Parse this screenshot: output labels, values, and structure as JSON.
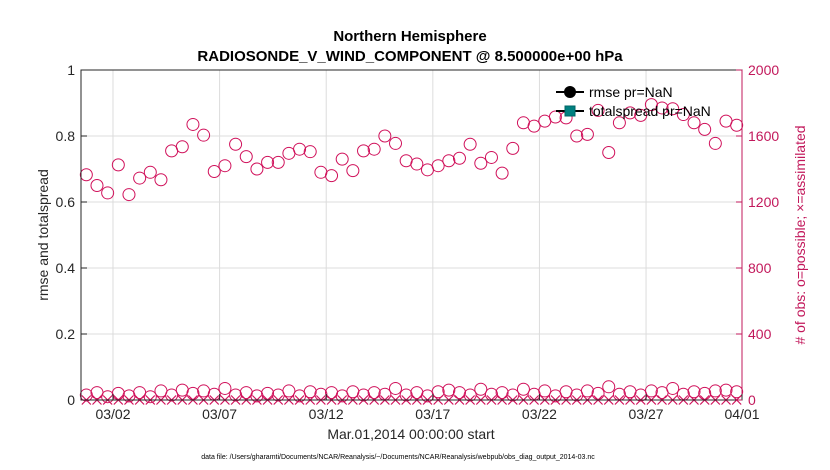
{
  "chart_data": {
    "type": "scatter",
    "title_line1": "Northern Hemisphere",
    "title_line2": "RADIOSONDE_V_WIND_COMPONENT @ 8.500000e+00 hPa",
    "xlabel": "Mar.01,2014 00:00:00 start",
    "ylabel_left": "rmse and totalspread",
    "ylabel_right": "# of obs: o=possible; ×=assimilated",
    "footnote": "data file: /Users/gharamti/Documents/NCAR/Reanalysis/~/Documents/NCAR/Reanalysis/webpub/obs_diag_output_2014-03.nc",
    "xlim": [
      0.5,
      31.5
    ],
    "ylim_left": [
      0,
      1
    ],
    "ylim_right": [
      0,
      2000
    ],
    "x_ticks": [
      {
        "value": 2,
        "label": "03/02"
      },
      {
        "value": 7,
        "label": "03/07"
      },
      {
        "value": 12,
        "label": "03/12"
      },
      {
        "value": 17,
        "label": "03/17"
      },
      {
        "value": 22,
        "label": "03/22"
      },
      {
        "value": 27,
        "label": "03/27"
      },
      {
        "value": 31.5,
        "label": "04/01"
      }
    ],
    "y_ticks_left": [
      {
        "value": 0,
        "label": "0"
      },
      {
        "value": 0.2,
        "label": "0.2"
      },
      {
        "value": 0.4,
        "label": "0.4"
      },
      {
        "value": 0.6,
        "label": "0.6"
      },
      {
        "value": 0.8,
        "label": "0.8"
      },
      {
        "value": 1,
        "label": "1"
      }
    ],
    "y_ticks_right": [
      {
        "value": 0,
        "label": "0"
      },
      {
        "value": 400,
        "label": "400"
      },
      {
        "value": 800,
        "label": "800"
      },
      {
        "value": 1200,
        "label": "1200"
      },
      {
        "value": 1600,
        "label": "1600"
      },
      {
        "value": 2000,
        "label": "2000"
      }
    ],
    "legend": [
      {
        "name": "rmse pr=NaN",
        "color": "#000000",
        "marker": "circle"
      },
      {
        "name": "totalspread pr=NaN",
        "color": "#008080",
        "marker": "square"
      }
    ],
    "series": [
      {
        "name": "possible (large)",
        "marker": "open-circle",
        "color": "#d0105a",
        "x": [
          0.75,
          1.25,
          1.75,
          2.25,
          2.75,
          3.25,
          3.75,
          4.25,
          4.75,
          5.25,
          5.75,
          6.25,
          6.75,
          7.25,
          7.75,
          8.25,
          8.75,
          9.25,
          9.75,
          10.25,
          10.75,
          11.25,
          11.75,
          12.25,
          12.75,
          13.25,
          13.75,
          14.25,
          14.75,
          15.25,
          15.75,
          16.25,
          16.75,
          17.25,
          17.75,
          18.25,
          18.75,
          19.25,
          19.75,
          20.25,
          20.75,
          21.25,
          21.75,
          22.25,
          22.75,
          23.25,
          23.75,
          24.25,
          24.75,
          25.25,
          25.75,
          26.25,
          26.75,
          27.25,
          27.75,
          28.25,
          28.75,
          29.25,
          29.75,
          30.25,
          30.75,
          31.25
        ],
        "values": [
          1365,
          1300,
          1255,
          1425,
          1245,
          1345,
          1380,
          1335,
          1510,
          1535,
          1670,
          1605,
          1385,
          1420,
          1550,
          1475,
          1400,
          1440,
          1440,
          1495,
          1520,
          1505,
          1380,
          1360,
          1460,
          1390,
          1510,
          1520,
          1600,
          1555,
          1450,
          1430,
          1395,
          1420,
          1450,
          1465,
          1550,
          1435,
          1470,
          1375,
          1525,
          1680,
          1660,
          1690,
          1715,
          1710,
          1600,
          1610,
          1755,
          1500,
          1680,
          1740,
          1725,
          1790,
          1770,
          1765,
          1730,
          1680,
          1640,
          1555,
          1690,
          1665
        ]
      },
      {
        "name": "possible (small)",
        "marker": "open-circle",
        "color": "#d0105a",
        "x": [
          0.75,
          1.25,
          1.75,
          2.25,
          2.75,
          3.25,
          3.75,
          4.25,
          4.75,
          5.25,
          5.75,
          6.25,
          6.75,
          7.25,
          7.75,
          8.25,
          8.75,
          9.25,
          9.75,
          10.25,
          10.75,
          11.25,
          11.75,
          12.25,
          12.75,
          13.25,
          13.75,
          14.25,
          14.75,
          15.25,
          15.75,
          16.25,
          16.75,
          17.25,
          17.75,
          18.25,
          18.75,
          19.25,
          19.75,
          20.25,
          20.75,
          21.25,
          21.75,
          22.25,
          22.75,
          23.25,
          23.75,
          24.25,
          24.75,
          25.25,
          25.75,
          26.25,
          26.75,
          27.25,
          27.75,
          28.25,
          28.75,
          29.25,
          29.75,
          30.25,
          30.75,
          31.25
        ],
        "values": [
          30,
          45,
          20,
          40,
          25,
          45,
          20,
          55,
          30,
          60,
          40,
          55,
          35,
          70,
          30,
          45,
          25,
          40,
          30,
          55,
          25,
          50,
          35,
          45,
          25,
          50,
          30,
          45,
          35,
          70,
          30,
          45,
          25,
          50,
          60,
          45,
          30,
          65,
          35,
          45,
          30,
          65,
          35,
          55,
          25,
          50,
          30,
          55,
          40,
          80,
          35,
          50,
          30,
          55,
          45,
          70,
          35,
          50,
          40,
          55,
          60,
          50
        ]
      },
      {
        "name": "assimilated",
        "marker": "x",
        "color": "#d0105a",
        "x": [
          0.75,
          1.25,
          1.75,
          2.25,
          2.75,
          3.25,
          3.75,
          4.25,
          4.75,
          5.25,
          5.75,
          6.25,
          6.75,
          7.25,
          7.75,
          8.25,
          8.75,
          9.25,
          9.75,
          10.25,
          10.75,
          11.25,
          11.75,
          12.25,
          12.75,
          13.25,
          13.75,
          14.25,
          14.75,
          15.25,
          15.75,
          16.25,
          16.75,
          17.25,
          17.75,
          18.25,
          18.75,
          19.25,
          19.75,
          20.25,
          20.75,
          21.25,
          21.75,
          22.25,
          22.75,
          23.25,
          23.75,
          24.25,
          24.75,
          25.25,
          25.75,
          26.25,
          26.75,
          27.25,
          27.75,
          28.25,
          28.75,
          29.25,
          29.75,
          30.25,
          30.75,
          31.25
        ],
        "values": [
          0,
          0,
          0,
          0,
          0,
          0,
          0,
          0,
          0,
          0,
          0,
          0,
          0,
          0,
          0,
          0,
          0,
          0,
          0,
          0,
          0,
          0,
          0,
          0,
          0,
          0,
          0,
          0,
          0,
          0,
          0,
          0,
          0,
          0,
          0,
          0,
          0,
          0,
          0,
          0,
          0,
          0,
          0,
          0,
          0,
          0,
          0,
          0,
          0,
          0,
          0,
          0,
          0,
          0,
          0,
          0,
          0,
          0,
          0,
          0,
          0,
          0
        ]
      }
    ]
  }
}
